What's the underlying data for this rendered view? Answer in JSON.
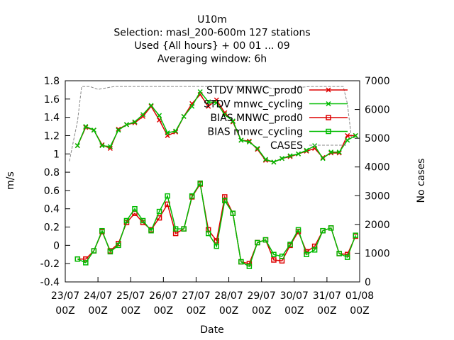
{
  "chart_data": {
    "type": "line",
    "title_lines": [
      "U10m",
      "Selection: masl_200-600m    127 stations",
      "Used {All hours} + 00 01 ... 09",
      "Averaging window:  6h"
    ],
    "xlabel": "Date",
    "ylabel": "m/s",
    "y2label": "No cases",
    "ylim": [
      -0.4,
      1.8
    ],
    "y2lim": [
      0,
      7000
    ],
    "yticks": [
      "-0.4",
      "-0.2",
      "0",
      "0.2",
      "0.4",
      "0.6",
      "0.8",
      "1",
      "1.2",
      "1.4",
      "1.6",
      "1.8"
    ],
    "y2ticks": [
      "0",
      "1000",
      "2000",
      "3000",
      "4000",
      "5000",
      "6000",
      "7000"
    ],
    "xlim": [
      0,
      36
    ],
    "xticks": [
      {
        "l1": "23/07",
        "l2": "00Z"
      },
      {
        "l1": "24/07",
        "l2": "00Z"
      },
      {
        "l1": "25/07",
        "l2": "00Z"
      },
      {
        "l1": "26/07",
        "l2": "00Z"
      },
      {
        "l1": "27/07",
        "l2": "00Z"
      },
      {
        "l1": "28/07",
        "l2": "00Z"
      },
      {
        "l1": "29/07",
        "l2": "00Z"
      },
      {
        "l1": "30/07",
        "l2": "00Z"
      },
      {
        "l1": "31/07",
        "l2": "00Z"
      },
      {
        "l1": "01/08",
        "l2": "00Z"
      }
    ],
    "x_hours": [
      1.5,
      2.5,
      3.5,
      4.5,
      5.5,
      6.5,
      7.5,
      8.5,
      9.5,
      10.5,
      11.5,
      12.5,
      13.5,
      14.5,
      15.5,
      16.5,
      17.5,
      18.5,
      19.5,
      20.5,
      21.5,
      22.5,
      23.5,
      24.5,
      25.5,
      26.5,
      27.5,
      28.5,
      29.5,
      30.5,
      31.5,
      32.5,
      33.5,
      34.5,
      35.5
    ],
    "series": [
      {
        "name": "STDV MNWC_prod0",
        "color": "#dd0000",
        "marker": "x",
        "axis": "y",
        "values": [
          1.09,
          1.29,
          1.26,
          1.1,
          1.06,
          1.27,
          1.32,
          1.34,
          1.41,
          1.52,
          1.37,
          1.2,
          1.24,
          1.41,
          1.55,
          1.65,
          1.52,
          1.59,
          1.45,
          1.35,
          1.15,
          1.14,
          1.05,
          0.93,
          0.91,
          0.95,
          0.97,
          1.0,
          1.03,
          1.06,
          0.96,
          1.01,
          1.01,
          1.2,
          1.2
        ]
      },
      {
        "name": "STDV mnwc_cycling",
        "color": "#00bb00",
        "marker": "x",
        "axis": "y",
        "values": [
          1.09,
          1.3,
          1.26,
          1.09,
          1.08,
          1.26,
          1.32,
          1.35,
          1.43,
          1.53,
          1.42,
          1.23,
          1.25,
          1.41,
          1.52,
          1.68,
          1.57,
          1.56,
          1.43,
          1.36,
          1.15,
          1.13,
          1.06,
          0.94,
          0.91,
          0.95,
          0.98,
          1.0,
          1.04,
          1.09,
          0.95,
          1.02,
          1.02,
          1.15,
          1.2
        ]
      },
      {
        "name": "BIAS MNWC_prod0",
        "color": "#dd0000",
        "marker": "square",
        "axis": "y",
        "values": [
          -0.15,
          -0.15,
          -0.06,
          0.15,
          -0.06,
          0.02,
          0.25,
          0.35,
          0.25,
          0.17,
          0.3,
          0.45,
          0.13,
          0.18,
          0.53,
          0.67,
          0.17,
          0.05,
          0.53,
          0.35,
          -0.18,
          -0.2,
          0.03,
          0.06,
          -0.16,
          -0.17,
          0.0,
          0.15,
          -0.07,
          -0.01,
          0.16,
          0.19,
          -0.09,
          -0.1,
          0.1
        ]
      },
      {
        "name": "BIAS mnwc_cycling",
        "color": "#00bb00",
        "marker": "square",
        "axis": "y",
        "values": [
          -0.15,
          -0.19,
          -0.06,
          0.16,
          -0.07,
          0.0,
          0.27,
          0.4,
          0.27,
          0.16,
          0.37,
          0.54,
          0.18,
          0.18,
          0.54,
          0.68,
          0.13,
          -0.01,
          0.49,
          0.35,
          -0.18,
          -0.23,
          0.03,
          0.06,
          -0.1,
          -0.12,
          0.01,
          0.17,
          -0.1,
          -0.05,
          0.16,
          0.19,
          -0.09,
          -0.13,
          0.11
        ]
      },
      {
        "name": "CASES",
        "color": "#888888",
        "marker": "none",
        "dashed": true,
        "axis": "y2",
        "x": [
          0.5,
          1,
          1.5,
          2,
          3,
          4,
          6,
          8,
          10,
          12,
          14,
          16,
          18,
          20,
          22,
          24,
          26,
          28,
          30,
          32,
          34,
          34.5,
          35
        ],
        "values": [
          4200,
          4900,
          5600,
          6800,
          6800,
          6700,
          6800,
          6800,
          6800,
          6800,
          6800,
          6800,
          6800,
          6800,
          6800,
          6800,
          6700,
          6750,
          6800,
          6800,
          6800,
          6200,
          5000
        ]
      }
    ],
    "legend_position": "top-right",
    "grid": false
  }
}
